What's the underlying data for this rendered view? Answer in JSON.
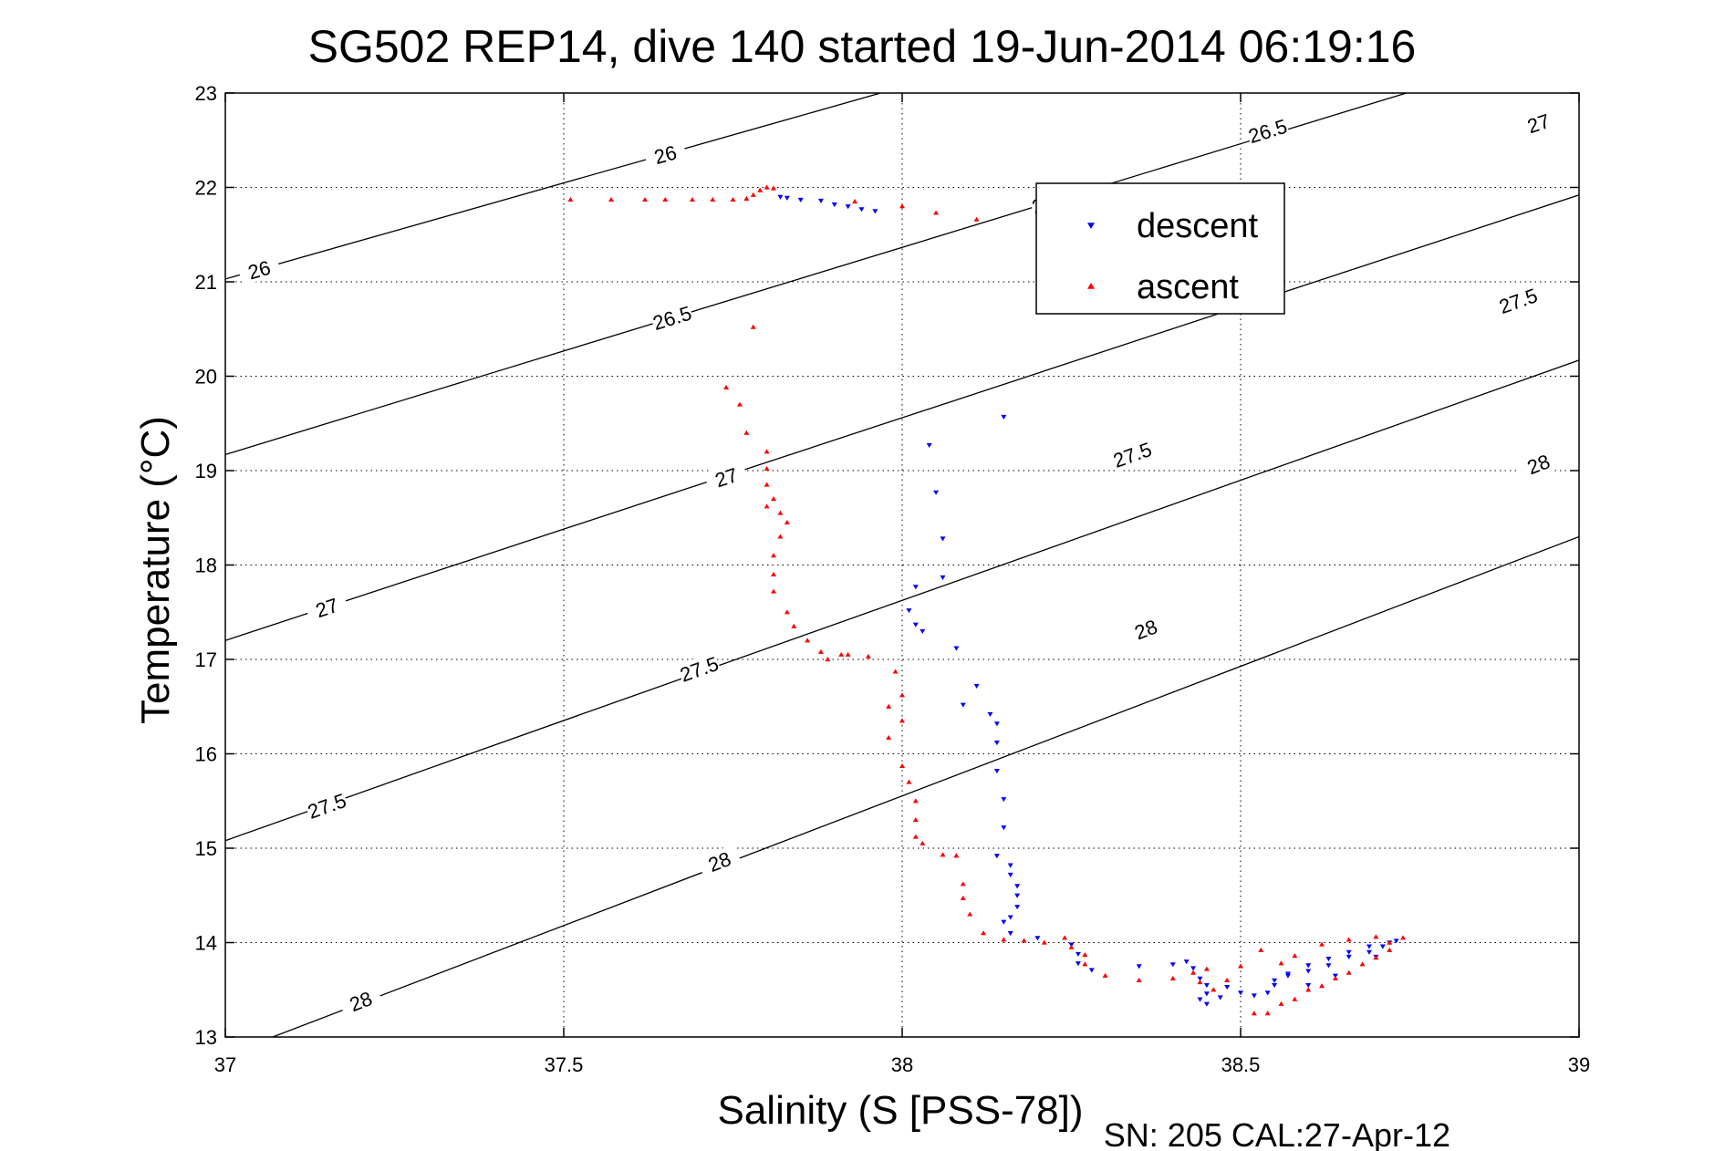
{
  "chart_data": {
    "type": "scatter",
    "title": "SG502 REP14, dive 140 started 19-Jun-2014 06:19:16",
    "xlabel": "Salinity (S [PSS-78])",
    "ylabel": "Temperature (°C)",
    "footer": "SN: 205  CAL:27-Apr-12",
    "xlim": [
      37,
      39
    ],
    "ylim": [
      13,
      23
    ],
    "xticks": [
      "37",
      "37.5",
      "38",
      "38.5",
      "39"
    ],
    "yticks": [
      "13",
      "14",
      "15",
      "16",
      "17",
      "18",
      "19",
      "20",
      "21",
      "22",
      "23"
    ],
    "grid": true,
    "legend_position": "top-right",
    "density_contours": [
      {
        "level": "26",
        "points": [
          [
            37,
            21.03
          ],
          [
            39,
            25.1
          ]
        ],
        "labels": [
          [
            37.05,
            21.13
          ],
          [
            37.65,
            22.35
          ]
        ]
      },
      {
        "level": "26.5",
        "points": [
          [
            37,
            19.17
          ],
          [
            39,
            23.56
          ]
        ],
        "labels": [
          [
            37.66,
            20.62
          ],
          [
            38.22,
            21.85
          ]
        ]
      },
      {
        "level": "27",
        "points": [
          [
            37,
            17.2
          ],
          [
            39,
            21.92
          ]
        ],
        "labels": [
          [
            37.15,
            17.55
          ],
          [
            37.74,
            18.93
          ]
        ]
      },
      {
        "level": "27.5",
        "points": [
          [
            37,
            15.08
          ],
          [
            39,
            20.17
          ]
        ],
        "labels": [
          [
            37.15,
            15.45
          ],
          [
            37.7,
            16.9
          ]
        ]
      },
      {
        "level": "28",
        "points": [
          [
            37.07,
            13
          ],
          [
            39,
            18.3
          ]
        ],
        "labels": [
          [
            37.2,
            13.38
          ],
          [
            37.73,
            14.86
          ]
        ]
      }
    ],
    "extra_contour_labels": [
      {
        "level": "26.5",
        "x": 38.54,
        "y": 22.6
      },
      {
        "level": "27",
        "x": 38.94,
        "y": 22.68
      },
      {
        "level": "27.5",
        "x": 38.34,
        "y": 19.17
      },
      {
        "level": "27.5",
        "x": 38.91,
        "y": 20.8
      },
      {
        "level": "28",
        "x": 38.36,
        "y": 17.32
      },
      {
        "level": "28",
        "x": 38.94,
        "y": 19.07
      }
    ],
    "series": [
      {
        "name": "descent",
        "color": "#0000ff",
        "marker": "triangle-down",
        "points": [
          [
            37.82,
            21.9
          ],
          [
            37.83,
            21.89
          ],
          [
            37.85,
            21.87
          ],
          [
            37.88,
            21.86
          ],
          [
            37.9,
            21.82
          ],
          [
            37.92,
            21.8
          ],
          [
            37.94,
            21.77
          ],
          [
            37.96,
            21.75
          ],
          [
            38.15,
            19.57
          ],
          [
            38.04,
            19.27
          ],
          [
            38.05,
            18.77
          ],
          [
            38.06,
            18.28
          ],
          [
            38.06,
            17.87
          ],
          [
            38.02,
            17.77
          ],
          [
            38.01,
            17.52
          ],
          [
            38.02,
            17.37
          ],
          [
            38.03,
            17.3
          ],
          [
            38.08,
            17.12
          ],
          [
            38.11,
            16.72
          ],
          [
            38.09,
            16.52
          ],
          [
            38.13,
            16.42
          ],
          [
            38.14,
            16.32
          ],
          [
            38.14,
            16.12
          ],
          [
            38.14,
            15.82
          ],
          [
            38.15,
            15.52
          ],
          [
            38.15,
            15.22
          ],
          [
            38.14,
            14.92
          ],
          [
            38.16,
            14.82
          ],
          [
            38.16,
            14.72
          ],
          [
            38.17,
            14.6
          ],
          [
            38.17,
            14.5
          ],
          [
            38.17,
            14.38
          ],
          [
            38.16,
            14.27
          ],
          [
            38.15,
            14.22
          ],
          [
            38.16,
            14.1
          ],
          [
            38.2,
            14.05
          ],
          [
            38.25,
            13.98
          ],
          [
            38.26,
            13.88
          ],
          [
            38.26,
            13.78
          ],
          [
            38.28,
            13.71
          ],
          [
            38.35,
            13.75
          ],
          [
            38.4,
            13.77
          ],
          [
            38.42,
            13.8
          ],
          [
            38.43,
            13.73
          ],
          [
            38.44,
            13.62
          ],
          [
            38.45,
            13.55
          ],
          [
            38.45,
            13.46
          ],
          [
            38.44,
            13.4
          ],
          [
            38.45,
            13.35
          ],
          [
            38.47,
            13.42
          ],
          [
            38.48,
            13.53
          ],
          [
            38.5,
            13.47
          ],
          [
            38.52,
            13.44
          ],
          [
            38.55,
            13.6
          ],
          [
            38.57,
            13.67
          ],
          [
            38.6,
            13.7
          ],
          [
            38.63,
            13.76
          ],
          [
            38.66,
            13.85
          ],
          [
            38.69,
            13.9
          ],
          [
            38.71,
            13.96
          ],
          [
            38.72,
            14.0
          ],
          [
            38.69,
            13.96
          ],
          [
            38.66,
            13.9
          ],
          [
            38.63,
            13.83
          ],
          [
            38.6,
            13.76
          ],
          [
            38.57,
            13.65
          ],
          [
            38.55,
            13.55
          ],
          [
            38.54,
            13.47
          ],
          [
            38.6,
            13.55
          ],
          [
            38.64,
            13.65
          ],
          [
            38.7,
            13.85
          ],
          [
            38.73,
            14.02
          ]
        ]
      },
      {
        "name": "ascent",
        "color": "#ff0000",
        "marker": "triangle-up",
        "points": [
          [
            37.51,
            21.87
          ],
          [
            37.57,
            21.87
          ],
          [
            37.62,
            21.87
          ],
          [
            37.65,
            21.87
          ],
          [
            37.69,
            21.87
          ],
          [
            37.72,
            21.87
          ],
          [
            37.75,
            21.87
          ],
          [
            37.77,
            21.88
          ],
          [
            37.78,
            21.92
          ],
          [
            37.79,
            21.97
          ],
          [
            37.8,
            22.0
          ],
          [
            37.81,
            21.99
          ],
          [
            37.93,
            21.85
          ],
          [
            38.0,
            21.8
          ],
          [
            38.05,
            21.73
          ],
          [
            38.11,
            21.66
          ],
          [
            37.78,
            20.52
          ],
          [
            37.74,
            19.88
          ],
          [
            37.76,
            19.7
          ],
          [
            37.77,
            19.4
          ],
          [
            37.8,
            19.2
          ],
          [
            37.8,
            19.02
          ],
          [
            37.8,
            18.85
          ],
          [
            37.81,
            18.7
          ],
          [
            37.8,
            18.62
          ],
          [
            37.82,
            18.55
          ],
          [
            37.83,
            18.45
          ],
          [
            37.82,
            18.3
          ],
          [
            37.81,
            18.1
          ],
          [
            37.81,
            17.9
          ],
          [
            37.81,
            17.72
          ],
          [
            37.83,
            17.5
          ],
          [
            37.84,
            17.35
          ],
          [
            37.86,
            17.2
          ],
          [
            37.88,
            17.08
          ],
          [
            37.89,
            17.0
          ],
          [
            37.91,
            17.05
          ],
          [
            37.92,
            17.05
          ],
          [
            37.95,
            17.03
          ],
          [
            37.99,
            16.87
          ],
          [
            38.0,
            16.62
          ],
          [
            37.98,
            16.5
          ],
          [
            38.0,
            16.35
          ],
          [
            37.98,
            16.17
          ],
          [
            38.0,
            15.87
          ],
          [
            38.01,
            15.7
          ],
          [
            38.02,
            15.5
          ],
          [
            38.02,
            15.3
          ],
          [
            38.02,
            15.12
          ],
          [
            38.03,
            15.05
          ],
          [
            38.06,
            14.93
          ],
          [
            38.08,
            14.92
          ],
          [
            38.09,
            14.62
          ],
          [
            38.09,
            14.47
          ],
          [
            38.1,
            14.3
          ],
          [
            38.12,
            14.1
          ],
          [
            38.15,
            14.03
          ],
          [
            38.18,
            14.02
          ],
          [
            38.21,
            14.0
          ],
          [
            38.24,
            14.05
          ],
          [
            38.25,
            13.95
          ],
          [
            38.27,
            13.87
          ],
          [
            38.27,
            13.77
          ],
          [
            38.3,
            13.65
          ],
          [
            38.35,
            13.6
          ],
          [
            38.4,
            13.62
          ],
          [
            38.43,
            13.68
          ],
          [
            38.45,
            13.72
          ],
          [
            38.44,
            13.58
          ],
          [
            38.46,
            13.5
          ],
          [
            38.48,
            13.6
          ],
          [
            38.5,
            13.75
          ],
          [
            38.53,
            13.92
          ],
          [
            38.52,
            13.25
          ],
          [
            38.56,
            13.35
          ],
          [
            38.6,
            13.5
          ],
          [
            38.64,
            13.62
          ],
          [
            38.68,
            13.77
          ],
          [
            38.72,
            13.92
          ],
          [
            38.74,
            14.05
          ],
          [
            38.7,
            14.06
          ],
          [
            38.66,
            14.03
          ],
          [
            38.62,
            13.98
          ],
          [
            38.58,
            13.86
          ],
          [
            38.56,
            13.78
          ],
          [
            38.54,
            13.25
          ],
          [
            38.58,
            13.4
          ],
          [
            38.62,
            13.54
          ],
          [
            38.66,
            13.68
          ],
          [
            38.7,
            13.84
          ],
          [
            38.72,
            14.0
          ]
        ]
      }
    ]
  }
}
